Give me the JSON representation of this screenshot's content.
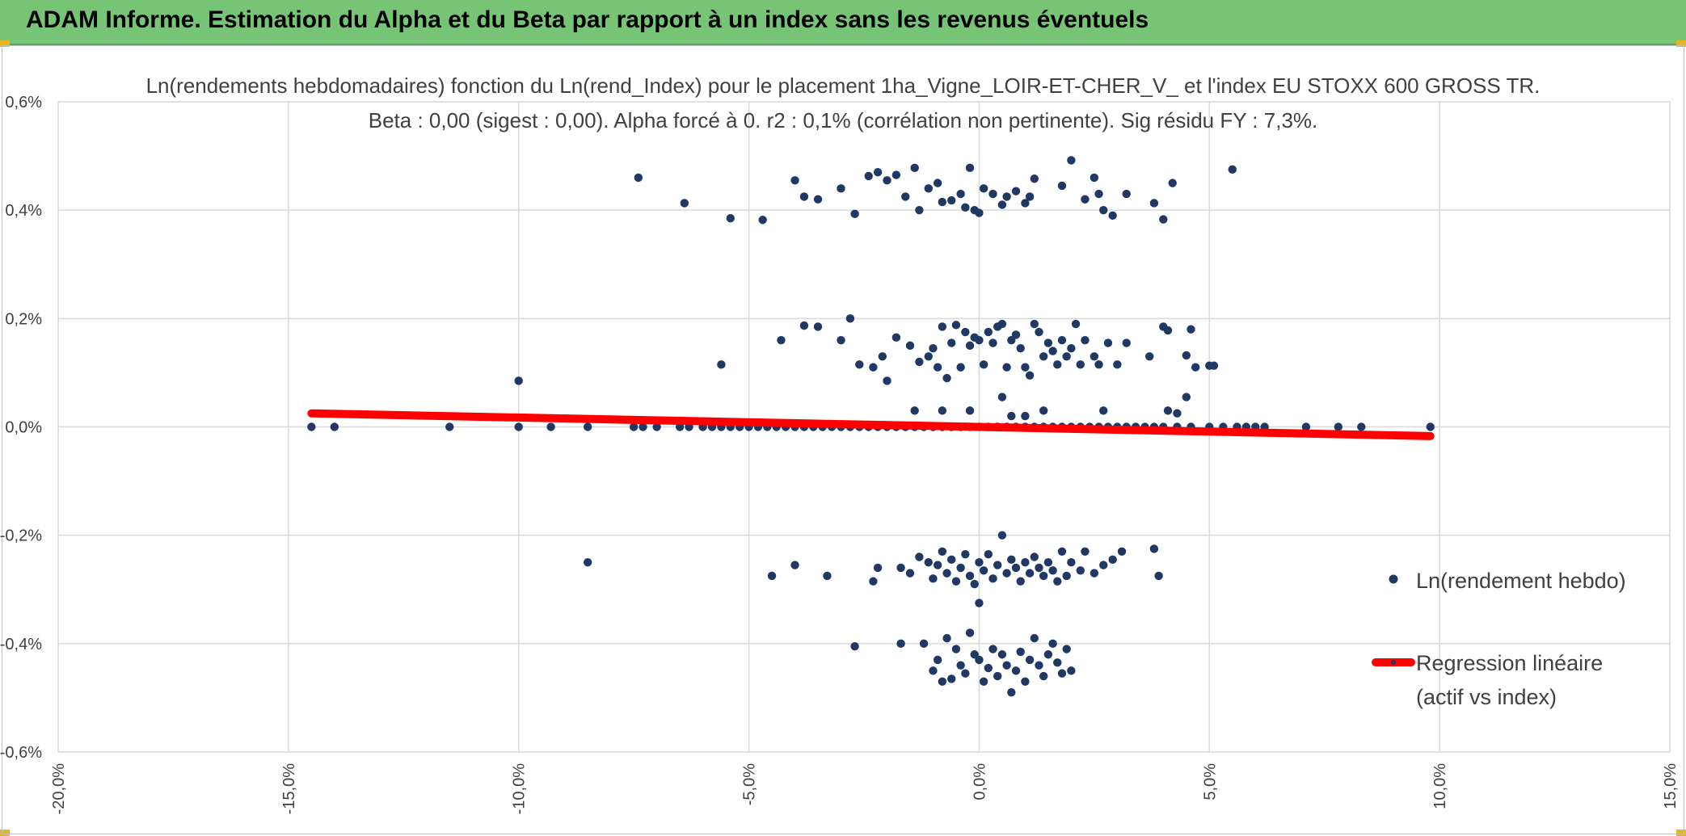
{
  "banner": {
    "title": "ADAM Informe. Estimation du Alpha et du Beta par rapport à un index sans les revenus éventuels"
  },
  "colors": {
    "banner": "#77c477",
    "points": "#203864",
    "regression": "#ff0000",
    "grid": "#d9d9d9"
  },
  "chart_data": {
    "type": "scatter",
    "title": "Ln(rendements hebdomadaires) fonction du Ln(rend_Index) pour le placement 1ha_Vigne_LOIR-ET-CHER_V_ et l'index EU STOXX 600 GROSS TR.",
    "subtitle": "Beta : 0,00 (sigest : 0,00). Alpha forcé à 0. r2 : 0,1% (corrélation non pertinente). Sig résidu FY : 7,3%.",
    "xlabel": "",
    "ylabel": "",
    "xlim": [
      -20,
      15
    ],
    "ylim": [
      -0.6,
      0.6
    ],
    "x_ticks": [
      "-20,0%",
      "-15,0%",
      "-10,0%",
      "-5,0%",
      "0,0%",
      "5,0%",
      "10,0%",
      "15,0%"
    ],
    "y_ticks": [
      "0,6%",
      "0,4%",
      "0,2%",
      "0,0%",
      "-0,2%",
      "-0,4%",
      "-0,6%"
    ],
    "grid": true,
    "legend_position": "right",
    "legend": [
      "Ln(rendement hebdo)",
      "Regression linéaire",
      "(actif vs index)"
    ],
    "series": [
      {
        "name": "Ln(rendement hebdo)",
        "points": [
          [
            -14.5,
            0
          ],
          [
            -14,
            0
          ],
          [
            -11.5,
            0
          ],
          [
            -10,
            0
          ],
          [
            -9.3,
            0
          ],
          [
            -8.5,
            0
          ],
          [
            -7.5,
            0
          ],
          [
            -7.3,
            0
          ],
          [
            -7,
            0
          ],
          [
            -6.5,
            0
          ],
          [
            -6.3,
            0
          ],
          [
            -6,
            0
          ],
          [
            -5.8,
            0
          ],
          [
            -5.6,
            0
          ],
          [
            -5.4,
            0
          ],
          [
            -5.2,
            0
          ],
          [
            -5,
            0
          ],
          [
            -4.8,
            0
          ],
          [
            -4.6,
            0
          ],
          [
            -4.4,
            0
          ],
          [
            -4.2,
            0
          ],
          [
            -4,
            0
          ],
          [
            -3.8,
            0
          ],
          [
            -3.6,
            0
          ],
          [
            -3.4,
            0
          ],
          [
            -3.2,
            0
          ],
          [
            -3,
            0
          ],
          [
            -2.8,
            0
          ],
          [
            -2.6,
            0
          ],
          [
            -2.4,
            0
          ],
          [
            -2.2,
            0
          ],
          [
            -2,
            0
          ],
          [
            -1.8,
            0
          ],
          [
            -1.6,
            0
          ],
          [
            -1.4,
            0
          ],
          [
            -1.2,
            0
          ],
          [
            -1,
            0
          ],
          [
            -0.8,
            0
          ],
          [
            -0.6,
            0
          ],
          [
            -0.4,
            0
          ],
          [
            -0.2,
            0
          ],
          [
            0,
            0
          ],
          [
            0.2,
            0
          ],
          [
            0.4,
            0
          ],
          [
            0.6,
            0
          ],
          [
            0.8,
            0
          ],
          [
            1,
            0
          ],
          [
            1.2,
            0
          ],
          [
            1.4,
            0
          ],
          [
            1.6,
            0
          ],
          [
            1.8,
            0
          ],
          [
            2,
            0
          ],
          [
            2.2,
            0
          ],
          [
            2.4,
            0
          ],
          [
            2.6,
            0
          ],
          [
            2.8,
            0
          ],
          [
            3,
            0
          ],
          [
            3.2,
            0
          ],
          [
            3.4,
            0
          ],
          [
            3.6,
            0
          ],
          [
            3.8,
            0
          ],
          [
            4,
            0
          ],
          [
            4.3,
            0
          ],
          [
            4.6,
            0
          ],
          [
            5,
            0
          ],
          [
            5.3,
            0
          ],
          [
            5.6,
            0
          ],
          [
            5.8,
            0
          ],
          [
            6,
            0
          ],
          [
            6.2,
            0
          ],
          [
            7.1,
            0
          ],
          [
            7.8,
            0
          ],
          [
            8.3,
            0
          ],
          [
            9.8,
            0
          ],
          [
            -10,
            0.085
          ],
          [
            -8.5,
            -0.25
          ],
          [
            -7.4,
            0.46
          ],
          [
            -6.4,
            0.413
          ],
          [
            -5.4,
            0.385
          ],
          [
            -4.7,
            0.382
          ],
          [
            -4,
            0.455
          ],
          [
            -3.8,
            0.425
          ],
          [
            -3.5,
            0.42
          ],
          [
            -3,
            0.44
          ],
          [
            -2.7,
            0.393
          ],
          [
            -2.4,
            0.463
          ],
          [
            -2.2,
            0.47
          ],
          [
            -2,
            0.455
          ],
          [
            -1.8,
            0.465
          ],
          [
            -1.6,
            0.425
          ],
          [
            -1.4,
            0.478
          ],
          [
            -1.3,
            0.4
          ],
          [
            -1.1,
            0.44
          ],
          [
            -0.9,
            0.45
          ],
          [
            -0.8,
            0.415
          ],
          [
            -0.6,
            0.418
          ],
          [
            -0.4,
            0.43
          ],
          [
            -0.3,
            0.405
          ],
          [
            -0.2,
            0.478
          ],
          [
            -0.1,
            0.4
          ],
          [
            0,
            0.395
          ],
          [
            0.1,
            0.44
          ],
          [
            0.3,
            0.43
          ],
          [
            0.5,
            0.41
          ],
          [
            0.6,
            0.425
          ],
          [
            0.8,
            0.435
          ],
          [
            1,
            0.413
          ],
          [
            1.1,
            0.425
          ],
          [
            1.2,
            0.458
          ],
          [
            1.8,
            0.445
          ],
          [
            2,
            0.492
          ],
          [
            2.3,
            0.42
          ],
          [
            2.5,
            0.46
          ],
          [
            2.6,
            0.43
          ],
          [
            2.7,
            0.4
          ],
          [
            2.9,
            0.39
          ],
          [
            3.2,
            0.43
          ],
          [
            3.8,
            0.413
          ],
          [
            4,
            0.383
          ],
          [
            4.2,
            0.45
          ],
          [
            5.5,
            0.475
          ],
          [
            -5.6,
            0.115
          ],
          [
            -4.3,
            0.16
          ],
          [
            -3.8,
            0.187
          ],
          [
            -3.5,
            0.185
          ],
          [
            -3,
            0.16
          ],
          [
            -2.8,
            0.2
          ],
          [
            -2.6,
            0.115
          ],
          [
            -2.3,
            0.11
          ],
          [
            -2.1,
            0.13
          ],
          [
            -2,
            0.085
          ],
          [
            -1.8,
            0.165
          ],
          [
            -1.5,
            0.15
          ],
          [
            -1.3,
            0.12
          ],
          [
            -1.1,
            0.13
          ],
          [
            -1,
            0.145
          ],
          [
            -0.9,
            0.11
          ],
          [
            -0.8,
            0.185
          ],
          [
            -0.7,
            0.09
          ],
          [
            -0.6,
            0.155
          ],
          [
            -0.5,
            0.188
          ],
          [
            -0.4,
            0.11
          ],
          [
            -0.3,
            0.175
          ],
          [
            -0.2,
            0.15
          ],
          [
            -0.1,
            0.165
          ],
          [
            0,
            0.16
          ],
          [
            0.1,
            0.115
          ],
          [
            0.2,
            0.175
          ],
          [
            0.3,
            0.155
          ],
          [
            0.4,
            0.185
          ],
          [
            0.5,
            0.19
          ],
          [
            0.6,
            0.11
          ],
          [
            0.7,
            0.16
          ],
          [
            0.8,
            0.17
          ],
          [
            0.9,
            0.145
          ],
          [
            1,
            0.11
          ],
          [
            1.1,
            0.095
          ],
          [
            1.2,
            0.19
          ],
          [
            1.3,
            0.175
          ],
          [
            1.4,
            0.13
          ],
          [
            1.5,
            0.155
          ],
          [
            1.6,
            0.14
          ],
          [
            1.7,
            0.115
          ],
          [
            1.8,
            0.16
          ],
          [
            1.9,
            0.13
          ],
          [
            2,
            0.145
          ],
          [
            2.1,
            0.19
          ],
          [
            2.2,
            0.115
          ],
          [
            2.3,
            0.16
          ],
          [
            2.5,
            0.13
          ],
          [
            2.6,
            0.115
          ],
          [
            2.8,
            0.155
          ],
          [
            3,
            0.115
          ],
          [
            3.2,
            0.155
          ],
          [
            3.7,
            0.13
          ],
          [
            4,
            0.185
          ],
          [
            4.1,
            0.178
          ],
          [
            4.5,
            0.132
          ],
          [
            4.6,
            0.18
          ],
          [
            4.7,
            0.11
          ],
          [
            5,
            0.113
          ],
          [
            5.1,
            0.113
          ],
          [
            -1.4,
            0.03
          ],
          [
            -0.8,
            0.03
          ],
          [
            -0.2,
            0.03
          ],
          [
            0.5,
            0.055
          ],
          [
            0.7,
            0.02
          ],
          [
            1,
            0.02
          ],
          [
            1.4,
            0.03
          ],
          [
            2.7,
            0.03
          ],
          [
            4.1,
            0.03
          ],
          [
            4.5,
            0.055
          ],
          [
            4.3,
            0.025
          ],
          [
            -4.5,
            -0.275
          ],
          [
            -4,
            -0.255
          ],
          [
            -3.3,
            -0.275
          ],
          [
            -2.3,
            -0.285
          ],
          [
            -2.2,
            -0.26
          ],
          [
            -1.7,
            -0.26
          ],
          [
            -1.5,
            -0.27
          ],
          [
            -1.3,
            -0.24
          ],
          [
            -1.1,
            -0.25
          ],
          [
            -1,
            -0.28
          ],
          [
            -0.9,
            -0.255
          ],
          [
            -0.8,
            -0.23
          ],
          [
            -0.7,
            -0.27
          ],
          [
            -0.6,
            -0.245
          ],
          [
            -0.5,
            -0.285
          ],
          [
            -0.4,
            -0.26
          ],
          [
            -0.3,
            -0.235
          ],
          [
            -0.2,
            -0.275
          ],
          [
            -0.1,
            -0.29
          ],
          [
            0,
            -0.325
          ],
          [
            0,
            -0.25
          ],
          [
            0.1,
            -0.265
          ],
          [
            0.2,
            -0.235
          ],
          [
            0.3,
            -0.28
          ],
          [
            0.4,
            -0.255
          ],
          [
            0.5,
            -0.2
          ],
          [
            0.6,
            -0.27
          ],
          [
            0.7,
            -0.245
          ],
          [
            0.8,
            -0.26
          ],
          [
            0.9,
            -0.285
          ],
          [
            1,
            -0.25
          ],
          [
            1.1,
            -0.27
          ],
          [
            1.2,
            -0.24
          ],
          [
            1.3,
            -0.26
          ],
          [
            1.4,
            -0.275
          ],
          [
            1.5,
            -0.25
          ],
          [
            1.6,
            -0.265
          ],
          [
            1.7,
            -0.285
          ],
          [
            1.8,
            -0.23
          ],
          [
            1.9,
            -0.275
          ],
          [
            2,
            -0.25
          ],
          [
            2.2,
            -0.265
          ],
          [
            2.3,
            -0.23
          ],
          [
            2.5,
            -0.27
          ],
          [
            2.7,
            -0.255
          ],
          [
            2.9,
            -0.245
          ],
          [
            3.1,
            -0.23
          ],
          [
            3.8,
            -0.225
          ],
          [
            3.9,
            -0.275
          ],
          [
            -2.7,
            -0.405
          ],
          [
            -1.7,
            -0.4
          ],
          [
            -1.2,
            -0.4
          ],
          [
            -1,
            -0.45
          ],
          [
            -0.9,
            -0.43
          ],
          [
            -0.8,
            -0.47
          ],
          [
            -0.7,
            -0.39
          ],
          [
            -0.6,
            -0.465
          ],
          [
            -0.5,
            -0.41
          ],
          [
            -0.4,
            -0.44
          ],
          [
            -0.3,
            -0.455
          ],
          [
            -0.2,
            -0.38
          ],
          [
            -0.1,
            -0.42
          ],
          [
            0,
            -0.43
          ],
          [
            0.1,
            -0.47
          ],
          [
            0.2,
            -0.445
          ],
          [
            0.3,
            -0.41
          ],
          [
            0.4,
            -0.46
          ],
          [
            0.5,
            -0.42
          ],
          [
            0.6,
            -0.44
          ],
          [
            0.7,
            -0.49
          ],
          [
            0.8,
            -0.45
          ],
          [
            0.9,
            -0.415
          ],
          [
            1,
            -0.47
          ],
          [
            1.1,
            -0.43
          ],
          [
            1.2,
            -0.39
          ],
          [
            1.3,
            -0.44
          ],
          [
            1.4,
            -0.46
          ],
          [
            1.5,
            -0.42
          ],
          [
            1.6,
            -0.4
          ],
          [
            1.7,
            -0.435
          ],
          [
            1.8,
            -0.455
          ],
          [
            1.9,
            -0.41
          ],
          [
            2,
            -0.45
          ]
        ]
      },
      {
        "name": "Regression linéaire (actif vs index)",
        "line": [
          [
            -14.5,
            0.025
          ],
          [
            9.8,
            -0.017
          ]
        ]
      }
    ]
  }
}
